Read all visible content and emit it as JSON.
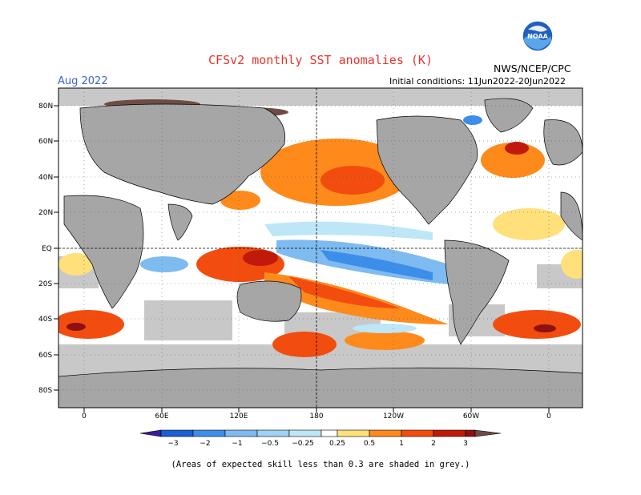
{
  "title": "CFSv2 monthly SST anomalies (K)",
  "agency": "NWS/NCEP/CPC",
  "month": "Aug 2022",
  "initial_conditions": "Initial conditions: 11Jun2022-20Jun2022",
  "logo_text": "NOAA",
  "footnote": "(Areas of expected skill less than 0.3 are shaded in grey.)",
  "lat_labels": [
    "80N",
    "60N",
    "40N",
    "20N",
    "EQ",
    "20S",
    "40S",
    "60S",
    "80S"
  ],
  "lon_labels": [
    "0",
    "60E",
    "120E",
    "180",
    "120W",
    "60W",
    "0"
  ],
  "colorbar": {
    "labels": [
      "−3",
      "−2",
      "−1",
      "−0.5",
      "−0.25",
      "0.25",
      "0.5",
      "1",
      "2",
      "3"
    ],
    "colors": [
      "#3d1c9c",
      "#1a5fd4",
      "#3c8ee8",
      "#7dbbf0",
      "#bde7f7",
      "#ffffff",
      "#ffe07a",
      "#ff8a1c",
      "#f24d0e",
      "#c21a0a",
      "#8e1010",
      "#6e4c44"
    ]
  },
  "colors": {
    "land": "#a6a6a6",
    "skill_grey": "#c8c8c8",
    "noaa_blue": "#1f5fbf"
  }
}
